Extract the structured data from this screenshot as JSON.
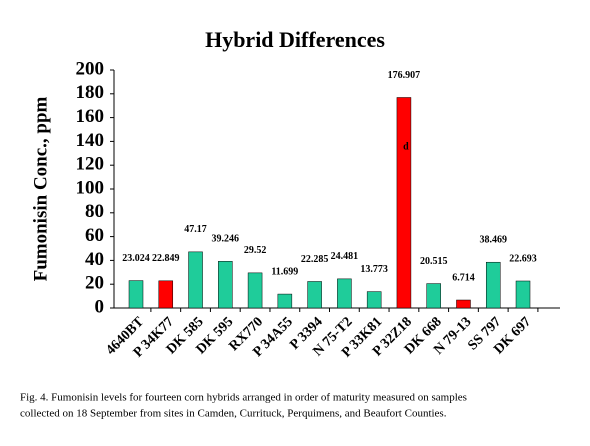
{
  "chart_data": {
    "type": "bar",
    "title": "Hybrid Differences",
    "y_label": "Fumonisin Conc., ppm",
    "categories": [
      "4640BT",
      "P 34K77",
      "DK 585",
      "DK 595",
      "RX770",
      "P 34A55",
      "P 3394",
      "N 75-T2",
      "P 33K81",
      "P 32Z18",
      "DK 668",
      "N 79-13",
      "SS 797",
      "DK 697"
    ],
    "values": [
      23.024,
      22.849,
      47.17,
      39.246,
      29.52,
      11.699,
      22.285,
      24.481,
      13.773,
      176.907,
      20.515,
      6.714,
      38.469,
      22.693
    ],
    "colors": [
      "#1fcc9a",
      "#ff0000",
      "#1fcc9a",
      "#1fcc9a",
      "#1fcc9a",
      "#1fcc9a",
      "#1fcc9a",
      "#1fcc9a",
      "#1fcc9a",
      "#ff0000",
      "#1fcc9a",
      "#ff0000",
      "#1fcc9a",
      "#1fcc9a"
    ],
    "annotation": "d",
    "ylim": [
      0,
      200
    ],
    "yticks": [
      0,
      20,
      40,
      60,
      80,
      100,
      120,
      140,
      160,
      180,
      200
    ],
    "grid": false,
    "caption": [
      "Fig. 4.  Fumonisin levels for fourteen corn hybrids arranged in order of maturity measured on samples",
      "collected on 18 September from sites in Camden, Currituck, Perquimens, and Beaufort Counties."
    ]
  }
}
